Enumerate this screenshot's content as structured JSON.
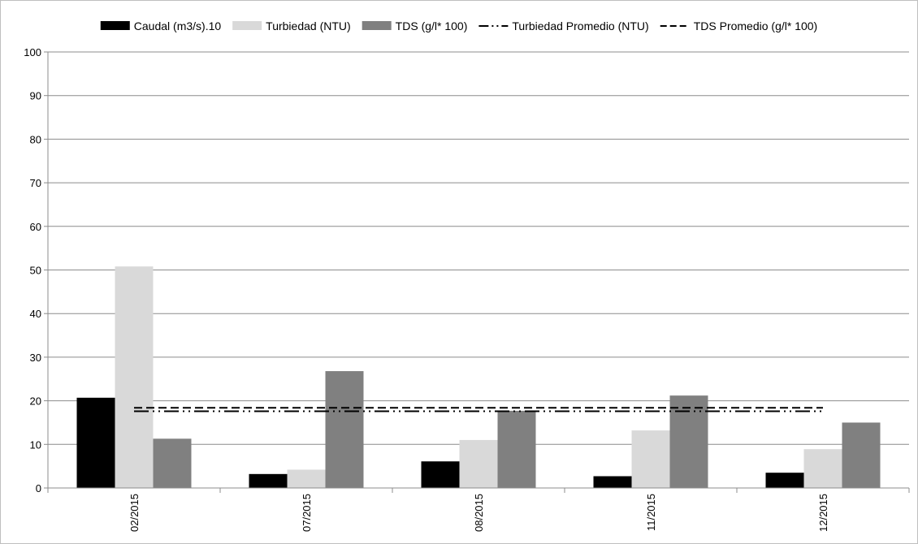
{
  "chart_data": {
    "type": "bar",
    "categories": [
      "02/2015",
      "07/2015",
      "08/2015",
      "11/2015",
      "12/2015"
    ],
    "series": [
      {
        "name": "Caudal (m3/s).10",
        "color": "#000000",
        "values": [
          20.7,
          3.2,
          6.1,
          2.7,
          3.5
        ]
      },
      {
        "name": "Turbiedad (NTU)",
        "color": "#d9d9d9",
        "values": [
          50.8,
          4.2,
          11.0,
          13.2,
          8.9
        ]
      },
      {
        "name": "TDS (g/l* 100)",
        "color": "#808080",
        "values": [
          11.3,
          26.8,
          17.7,
          21.2,
          15.0
        ]
      }
    ],
    "reference_lines": [
      {
        "name": "Turbiedad Promedio (NTU)",
        "value": 17.6,
        "style": "dash-dot-dot",
        "color": "#000000"
      },
      {
        "name": "TDS Promedio (g/l* 100)",
        "value": 18.4,
        "style": "dashed",
        "color": "#000000"
      }
    ],
    "ylim": [
      0,
      100
    ],
    "yticks": [
      0,
      10,
      20,
      30,
      40,
      50,
      60,
      70,
      80,
      90,
      100
    ],
    "grid": true,
    "legend_position": "top",
    "title": "",
    "xlabel": "",
    "ylabel": ""
  }
}
